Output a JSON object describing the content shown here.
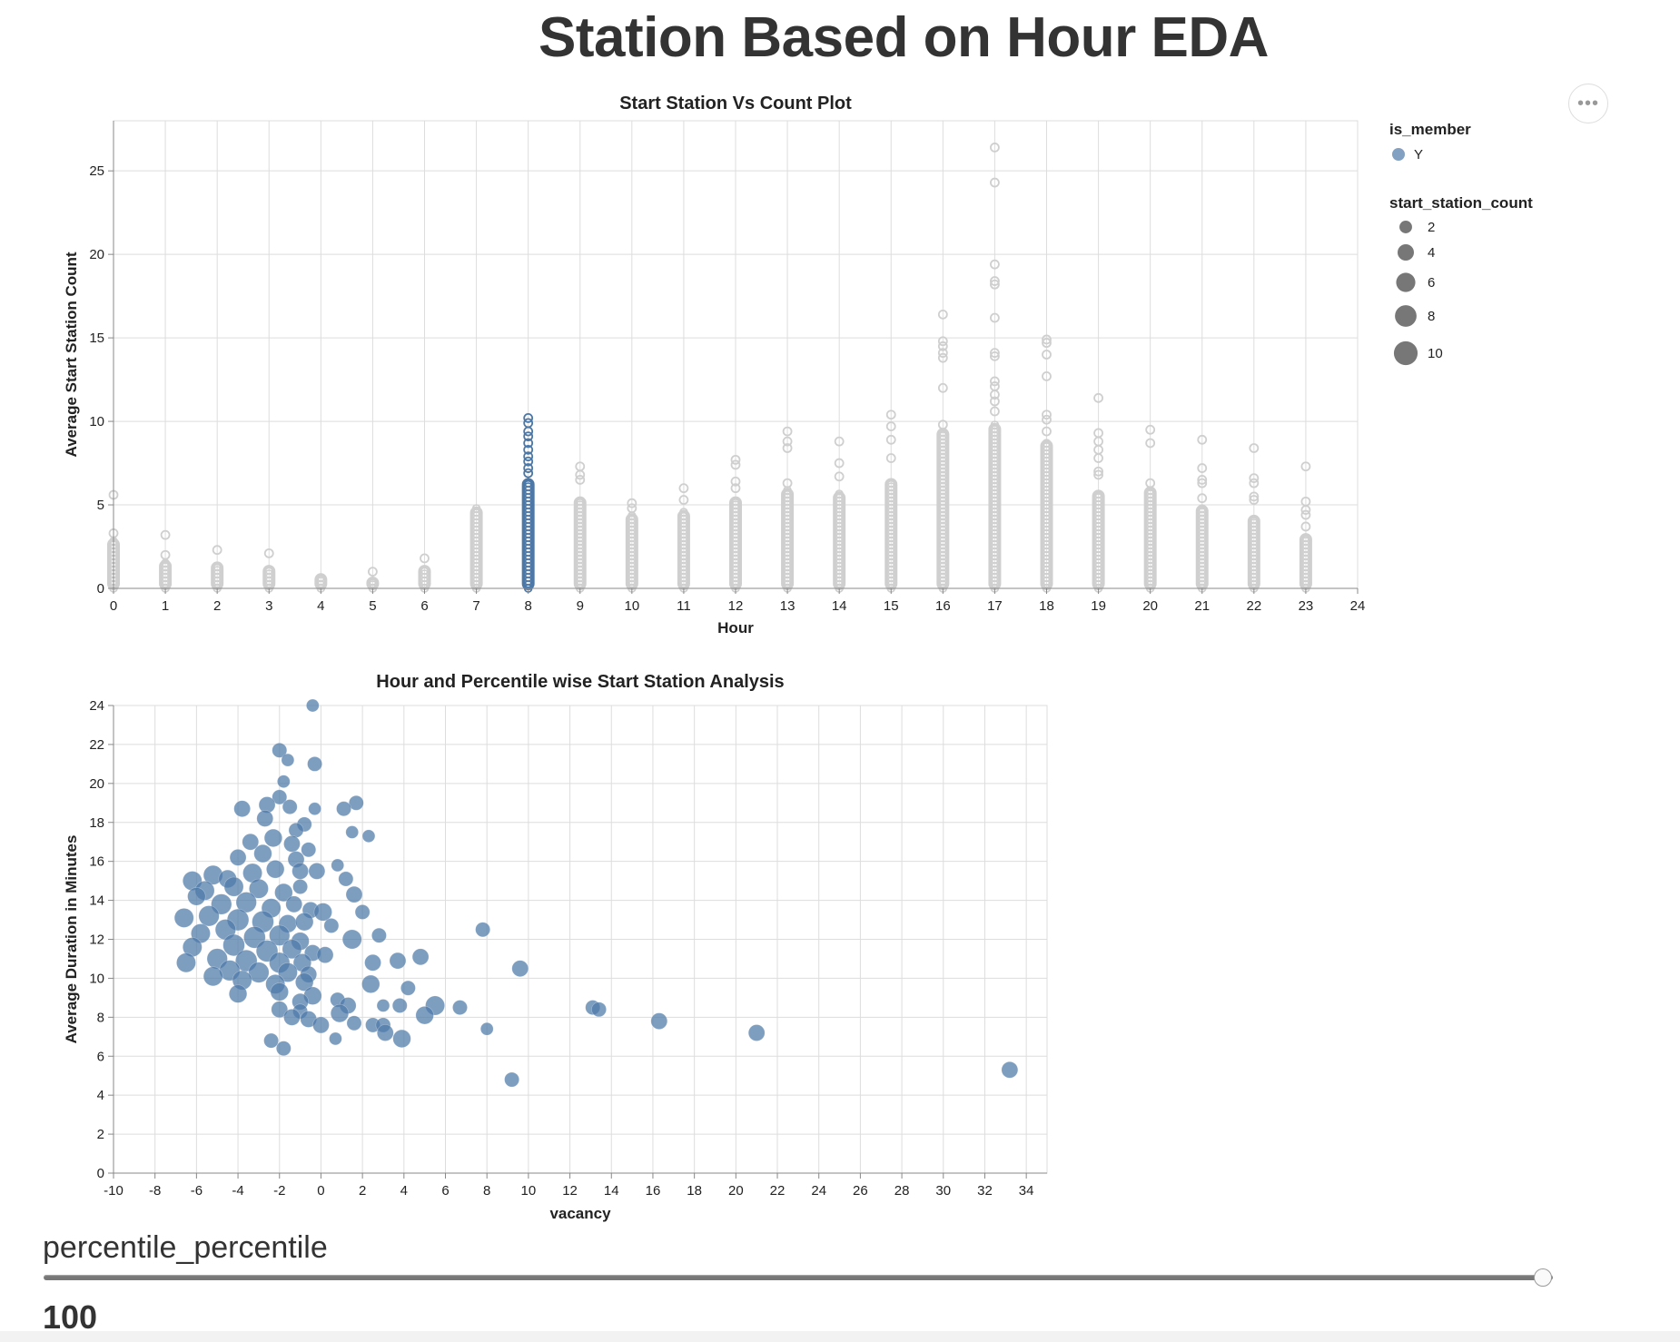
{
  "page": {
    "title": "Station Based on Hour EDA",
    "menu_glyph": "•••"
  },
  "slider": {
    "label": "percentile_percentile",
    "value": 100,
    "value_text": "100",
    "min": 0,
    "max": 100
  },
  "chart_data": [
    {
      "type": "scatter",
      "title": "Start Station Vs Count Plot",
      "xlabel": "Hour",
      "ylabel": "Average Start Station Count",
      "xlim": [
        0,
        24
      ],
      "ylim": [
        0,
        28
      ],
      "xticks": [
        0,
        1,
        2,
        3,
        4,
        5,
        6,
        7,
        8,
        9,
        10,
        11,
        12,
        13,
        14,
        15,
        16,
        17,
        18,
        19,
        20,
        21,
        22,
        23,
        24
      ],
      "yticks": [
        0,
        5,
        10,
        15,
        20,
        25
      ],
      "grid": true,
      "marker": "open-circle",
      "highlight_color": "#4c78a8",
      "inactive_color": "#cfcfcf",
      "highlighted_hour": 8,
      "columns": [
        {
          "hour": 0,
          "dense_max": 2.9,
          "outliers": [
            3.3,
            5.6
          ]
        },
        {
          "hour": 1,
          "dense_max": 1.6,
          "outliers": [
            2.0,
            3.2
          ]
        },
        {
          "hour": 2,
          "dense_max": 1.5,
          "outliers": [
            2.3
          ]
        },
        {
          "hour": 3,
          "dense_max": 1.3,
          "outliers": [
            2.1
          ]
        },
        {
          "hour": 4,
          "dense_max": 0.8,
          "outliers": []
        },
        {
          "hour": 5,
          "dense_max": 0.6,
          "outliers": [
            1.0
          ]
        },
        {
          "hour": 6,
          "dense_max": 1.3,
          "outliers": [
            1.8
          ]
        },
        {
          "hour": 7,
          "dense_max": 4.8,
          "outliers": []
        },
        {
          "hour": 8,
          "dense_max": 6.5,
          "outliers": [
            6.9,
            7.2,
            7.6,
            7.9,
            8.3,
            8.7,
            9.1,
            9.4,
            9.9,
            10.2
          ]
        },
        {
          "hour": 9,
          "dense_max": 5.4,
          "outliers": [
            6.5,
            6.8,
            7.3
          ]
        },
        {
          "hour": 10,
          "dense_max": 4.4,
          "outliers": [
            4.8,
            5.1
          ]
        },
        {
          "hour": 11,
          "dense_max": 4.6,
          "outliers": [
            5.3,
            6.0
          ]
        },
        {
          "hour": 12,
          "dense_max": 5.4,
          "outliers": [
            6.0,
            6.4,
            7.4,
            7.7
          ]
        },
        {
          "hour": 13,
          "dense_max": 5.9,
          "outliers": [
            6.3,
            8.4,
            8.8,
            9.4
          ]
        },
        {
          "hour": 14,
          "dense_max": 5.7,
          "outliers": [
            6.7,
            7.5,
            8.8
          ]
        },
        {
          "hour": 15,
          "dense_max": 6.5,
          "outliers": [
            7.8,
            8.9,
            9.7,
            10.4
          ]
        },
        {
          "hour": 16,
          "dense_max": 9.5,
          "outliers": [
            9.8,
            12.0,
            13.8,
            14.1,
            14.5,
            14.8,
            16.4
          ]
        },
        {
          "hour": 17,
          "dense_max": 9.8,
          "outliers": [
            10.6,
            11.2,
            11.6,
            12.1,
            12.4,
            13.9,
            14.1,
            16.2,
            18.2,
            18.4,
            19.4,
            24.3,
            26.4
          ]
        },
        {
          "hour": 18,
          "dense_max": 8.8,
          "outliers": [
            9.4,
            10.1,
            10.4,
            12.7,
            14.0,
            14.7,
            14.9
          ]
        },
        {
          "hour": 19,
          "dense_max": 5.8,
          "outliers": [
            6.8,
            7.0,
            7.8,
            8.3,
            8.8,
            9.3,
            11.4
          ]
        },
        {
          "hour": 20,
          "dense_max": 6.0,
          "outliers": [
            6.3,
            8.7,
            9.5
          ]
        },
        {
          "hour": 21,
          "dense_max": 4.9,
          "outliers": [
            5.4,
            6.3,
            6.5,
            7.2,
            8.9
          ]
        },
        {
          "hour": 22,
          "dense_max": 4.3,
          "outliers": [
            5.3,
            5.5,
            6.3,
            6.6,
            8.4
          ]
        },
        {
          "hour": 23,
          "dense_max": 3.2,
          "outliers": [
            3.7,
            4.4,
            4.7,
            5.2,
            7.3
          ]
        }
      ],
      "legend": {
        "placement": "right",
        "color": {
          "title": "is_member",
          "entries": [
            {
              "label": "Y",
              "color": "#4c78a8"
            }
          ]
        },
        "size": {
          "title": "start_station_count",
          "entries": [
            2,
            4,
            6,
            8,
            10
          ]
        }
      }
    },
    {
      "type": "scatter",
      "title": "Hour and Percentile wise Start Station Analysis",
      "xlabel": "vacancy",
      "ylabel": "Average Duration in Minutes",
      "xlim": [
        -10,
        35
      ],
      "ylim": [
        0,
        24
      ],
      "xticks": [
        -10,
        -8,
        -6,
        -4,
        -2,
        0,
        2,
        4,
        6,
        8,
        10,
        12,
        14,
        16,
        18,
        20,
        22,
        24,
        26,
        28,
        30,
        32,
        34
      ],
      "yticks": [
        0,
        2,
        4,
        6,
        8,
        10,
        12,
        14,
        16,
        18,
        20,
        22,
        24
      ],
      "grid": true,
      "color": "#4c78a8",
      "size_field": "start_station_count",
      "points": [
        {
          "x": -0.4,
          "y": 24.0,
          "s": 2
        },
        {
          "x": -2.0,
          "y": 21.7,
          "s": 3
        },
        {
          "x": -1.6,
          "y": 21.2,
          "s": 2
        },
        {
          "x": -0.3,
          "y": 21.0,
          "s": 3
        },
        {
          "x": -1.8,
          "y": 20.1,
          "s": 2
        },
        {
          "x": -3.8,
          "y": 18.7,
          "s": 4
        },
        {
          "x": -2.0,
          "y": 19.3,
          "s": 3
        },
        {
          "x": -1.5,
          "y": 18.8,
          "s": 3
        },
        {
          "x": -0.3,
          "y": 18.7,
          "s": 2
        },
        {
          "x": 1.7,
          "y": 19.0,
          "s": 3
        },
        {
          "x": 1.1,
          "y": 18.7,
          "s": 3
        },
        {
          "x": -2.6,
          "y": 18.9,
          "s": 4
        },
        {
          "x": -2.7,
          "y": 18.2,
          "s": 4
        },
        {
          "x": -0.8,
          "y": 17.9,
          "s": 3
        },
        {
          "x": -1.2,
          "y": 17.6,
          "s": 3
        },
        {
          "x": 1.5,
          "y": 17.5,
          "s": 2
        },
        {
          "x": 2.3,
          "y": 17.3,
          "s": 2
        },
        {
          "x": -3.4,
          "y": 17.0,
          "s": 4
        },
        {
          "x": -2.3,
          "y": 17.2,
          "s": 5
        },
        {
          "x": -1.4,
          "y": 16.9,
          "s": 4
        },
        {
          "x": -0.6,
          "y": 16.6,
          "s": 3
        },
        {
          "x": -4.0,
          "y": 16.2,
          "s": 4
        },
        {
          "x": -2.8,
          "y": 16.4,
          "s": 5
        },
        {
          "x": -1.2,
          "y": 16.1,
          "s": 4
        },
        {
          "x": 0.8,
          "y": 15.8,
          "s": 2
        },
        {
          "x": -6.2,
          "y": 15.0,
          "s": 6
        },
        {
          "x": -5.2,
          "y": 15.3,
          "s": 6
        },
        {
          "x": -4.5,
          "y": 15.1,
          "s": 5
        },
        {
          "x": -3.3,
          "y": 15.4,
          "s": 6
        },
        {
          "x": -2.2,
          "y": 15.6,
          "s": 5
        },
        {
          "x": -1.0,
          "y": 15.5,
          "s": 4
        },
        {
          "x": -0.2,
          "y": 15.5,
          "s": 4
        },
        {
          "x": 1.2,
          "y": 15.1,
          "s": 3
        },
        {
          "x": -5.6,
          "y": 14.5,
          "s": 6
        },
        {
          "x": -4.2,
          "y": 14.7,
          "s": 6
        },
        {
          "x": -3.0,
          "y": 14.6,
          "s": 6
        },
        {
          "x": -1.8,
          "y": 14.4,
          "s": 5
        },
        {
          "x": -1.0,
          "y": 14.7,
          "s": 3
        },
        {
          "x": 1.6,
          "y": 14.3,
          "s": 4
        },
        {
          "x": -6.0,
          "y": 14.2,
          "s": 5
        },
        {
          "x": -4.8,
          "y": 13.8,
          "s": 7
        },
        {
          "x": -3.6,
          "y": 13.9,
          "s": 7
        },
        {
          "x": -2.4,
          "y": 13.6,
          "s": 6
        },
        {
          "x": -1.3,
          "y": 13.8,
          "s": 4
        },
        {
          "x": -0.5,
          "y": 13.5,
          "s": 4
        },
        {
          "x": 0.1,
          "y": 13.4,
          "s": 5
        },
        {
          "x": 2.0,
          "y": 13.4,
          "s": 3
        },
        {
          "x": -6.6,
          "y": 13.1,
          "s": 6
        },
        {
          "x": -5.4,
          "y": 13.2,
          "s": 7
        },
        {
          "x": -4.0,
          "y": 13.0,
          "s": 8
        },
        {
          "x": -2.8,
          "y": 12.9,
          "s": 8
        },
        {
          "x": -1.6,
          "y": 12.8,
          "s": 5
        },
        {
          "x": -0.8,
          "y": 12.9,
          "s": 5
        },
        {
          "x": 0.5,
          "y": 12.7,
          "s": 3
        },
        {
          "x": 7.8,
          "y": 12.5,
          "s": 3
        },
        {
          "x": -5.8,
          "y": 12.3,
          "s": 6
        },
        {
          "x": -4.6,
          "y": 12.5,
          "s": 7
        },
        {
          "x": -3.2,
          "y": 12.1,
          "s": 8
        },
        {
          "x": -2.0,
          "y": 12.2,
          "s": 7
        },
        {
          "x": -1.0,
          "y": 11.9,
          "s": 5
        },
        {
          "x": 1.5,
          "y": 12.0,
          "s": 6
        },
        {
          "x": 2.8,
          "y": 12.2,
          "s": 3
        },
        {
          "x": -6.2,
          "y": 11.6,
          "s": 6
        },
        {
          "x": -4.2,
          "y": 11.7,
          "s": 8
        },
        {
          "x": -2.6,
          "y": 11.4,
          "s": 8
        },
        {
          "x": -1.4,
          "y": 11.5,
          "s": 6
        },
        {
          "x": -0.4,
          "y": 11.3,
          "s": 4
        },
        {
          "x": 0.2,
          "y": 11.2,
          "s": 4
        },
        {
          "x": 4.8,
          "y": 11.1,
          "s": 4
        },
        {
          "x": -5.0,
          "y": 11.0,
          "s": 7
        },
        {
          "x": -3.6,
          "y": 10.9,
          "s": 8
        },
        {
          "x": -2.0,
          "y": 10.8,
          "s": 7
        },
        {
          "x": -0.9,
          "y": 10.8,
          "s": 5
        },
        {
          "x": 2.5,
          "y": 10.8,
          "s": 4
        },
        {
          "x": 3.7,
          "y": 10.9,
          "s": 4
        },
        {
          "x": -6.5,
          "y": 10.8,
          "s": 6
        },
        {
          "x": 9.6,
          "y": 10.5,
          "s": 4
        },
        {
          "x": -4.4,
          "y": 10.4,
          "s": 7
        },
        {
          "x": -3.0,
          "y": 10.3,
          "s": 7
        },
        {
          "x": -1.6,
          "y": 10.3,
          "s": 6
        },
        {
          "x": -0.6,
          "y": 10.2,
          "s": 4
        },
        {
          "x": -5.2,
          "y": 10.1,
          "s": 6
        },
        {
          "x": -3.8,
          "y": 9.9,
          "s": 6
        },
        {
          "x": -2.2,
          "y": 9.7,
          "s": 6
        },
        {
          "x": -0.8,
          "y": 9.8,
          "s": 5
        },
        {
          "x": 2.4,
          "y": 9.7,
          "s": 5
        },
        {
          "x": 4.2,
          "y": 9.5,
          "s": 3
        },
        {
          "x": -4.0,
          "y": 9.2,
          "s": 5
        },
        {
          "x": -2.0,
          "y": 9.3,
          "s": 5
        },
        {
          "x": -0.4,
          "y": 9.1,
          "s": 5
        },
        {
          "x": 0.8,
          "y": 8.9,
          "s": 3
        },
        {
          "x": -1.0,
          "y": 8.8,
          "s": 4
        },
        {
          "x": 1.3,
          "y": 8.6,
          "s": 4
        },
        {
          "x": 3.0,
          "y": 8.6,
          "s": 2
        },
        {
          "x": 3.8,
          "y": 8.6,
          "s": 3
        },
        {
          "x": 5.5,
          "y": 8.6,
          "s": 6
        },
        {
          "x": 6.7,
          "y": 8.5,
          "s": 3
        },
        {
          "x": 13.1,
          "y": 8.5,
          "s": 3
        },
        {
          "x": 13.4,
          "y": 8.4,
          "s": 3
        },
        {
          "x": -2.0,
          "y": 8.4,
          "s": 4
        },
        {
          "x": -1.0,
          "y": 8.3,
          "s": 3
        },
        {
          "x": 0.9,
          "y": 8.2,
          "s": 5
        },
        {
          "x": 5.0,
          "y": 8.1,
          "s": 5
        },
        {
          "x": -1.4,
          "y": 8.0,
          "s": 4
        },
        {
          "x": -0.6,
          "y": 7.9,
          "s": 4
        },
        {
          "x": 1.6,
          "y": 7.7,
          "s": 3
        },
        {
          "x": 16.3,
          "y": 7.8,
          "s": 4
        },
        {
          "x": 0.0,
          "y": 7.6,
          "s": 4
        },
        {
          "x": 2.5,
          "y": 7.6,
          "s": 3
        },
        {
          "x": 3.0,
          "y": 7.6,
          "s": 3
        },
        {
          "x": 8.0,
          "y": 7.4,
          "s": 2
        },
        {
          "x": 21.0,
          "y": 7.2,
          "s": 4
        },
        {
          "x": 3.1,
          "y": 7.2,
          "s": 4
        },
        {
          "x": 3.9,
          "y": 6.9,
          "s": 5
        },
        {
          "x": 0.7,
          "y": 6.9,
          "s": 2
        },
        {
          "x": -2.4,
          "y": 6.8,
          "s": 3
        },
        {
          "x": -1.8,
          "y": 6.4,
          "s": 3
        },
        {
          "x": 33.2,
          "y": 5.3,
          "s": 4
        },
        {
          "x": 9.2,
          "y": 4.8,
          "s": 3
        }
      ]
    }
  ]
}
